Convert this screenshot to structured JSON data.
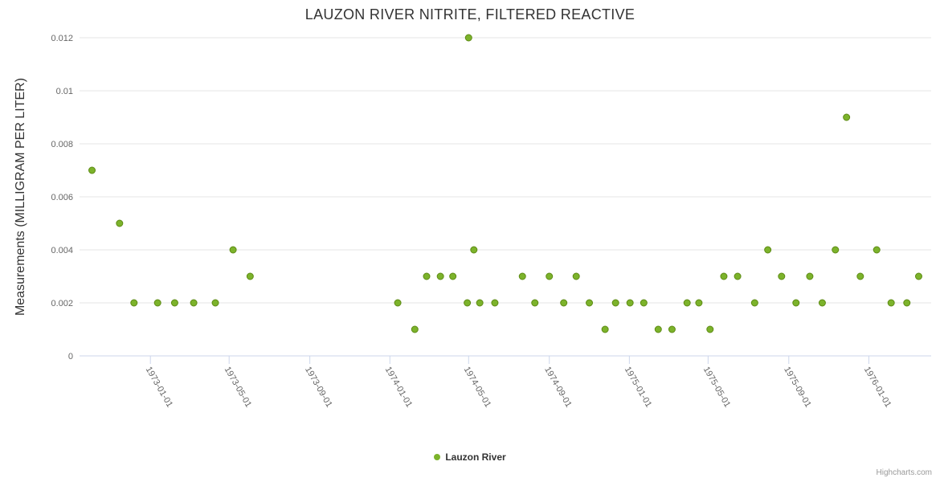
{
  "credits": "Highcharts.com",
  "chart_data": {
    "type": "scatter",
    "title": "LAUZON RIVER NITRITE, FILTERED REACTIVE",
    "xlabel": "",
    "ylabel": "Measurements (MILLIGRAM PER LITER)",
    "ylim": [
      0,
      0.012
    ],
    "grid": true,
    "legend_position": "bottom",
    "y_ticks": [
      0,
      0.002,
      0.004,
      0.006,
      0.008,
      0.01,
      0.012
    ],
    "y_tick_labels": [
      "0",
      "0.002",
      "0.004",
      "0.006",
      "0.008",
      "0.01",
      "0.012"
    ],
    "x_ticks": [
      "1973-01-01",
      "1973-05-01",
      "1973-09-01",
      "1974-01-01",
      "1974-05-01",
      "1974-09-01",
      "1975-01-01",
      "1975-05-01",
      "1975-09-01",
      "1976-01-01"
    ],
    "x_range": [
      "1972-09-15",
      "1976-04-05"
    ],
    "colors": {
      "grid_line": "#e6e6e6",
      "axis_line": "#ccd6eb",
      "tick_label": "#666666",
      "marker_fill": "#7cb32b",
      "marker_border": "#5d8a14"
    },
    "series": [
      {
        "name": "Lauzon River",
        "color": "#7cb32b",
        "border_color": "#5d8a14",
        "marker": "circle",
        "points": [
          [
            "1972-10-04",
            0.007
          ],
          [
            "1972-11-15",
            0.005
          ],
          [
            "1972-12-07",
            0.002
          ],
          [
            "1973-01-12",
            0.002
          ],
          [
            "1973-02-07",
            0.002
          ],
          [
            "1973-03-08",
            0.002
          ],
          [
            "1973-04-10",
            0.002
          ],
          [
            "1973-05-07",
            0.004
          ],
          [
            "1973-06-02",
            0.003
          ],
          [
            "1974-01-13",
            0.002
          ],
          [
            "1974-02-08",
            0.001
          ],
          [
            "1974-02-26",
            0.003
          ],
          [
            "1974-03-19",
            0.003
          ],
          [
            "1974-04-07",
            0.003
          ],
          [
            "1974-04-29",
            0.002
          ],
          [
            "1974-05-01",
            0.012
          ],
          [
            "1974-05-09",
            0.004
          ],
          [
            "1974-05-18",
            0.002
          ],
          [
            "1974-06-10",
            0.002
          ],
          [
            "1974-07-22",
            0.003
          ],
          [
            "1974-08-10",
            0.002
          ],
          [
            "1974-09-01",
            0.003
          ],
          [
            "1974-09-23",
            0.002
          ],
          [
            "1974-10-12",
            0.003
          ],
          [
            "1974-11-01",
            0.002
          ],
          [
            "1974-11-25",
            0.001
          ],
          [
            "1974-12-11",
            0.002
          ],
          [
            "1975-01-02",
            0.002
          ],
          [
            "1975-01-23",
            0.002
          ],
          [
            "1975-02-14",
            0.001
          ],
          [
            "1975-03-07",
            0.001
          ],
          [
            "1975-03-30",
            0.002
          ],
          [
            "1975-04-17",
            0.002
          ],
          [
            "1975-05-04",
            0.001
          ],
          [
            "1975-05-25",
            0.003
          ],
          [
            "1975-06-15",
            0.003
          ],
          [
            "1975-07-11",
            0.002
          ],
          [
            "1975-07-31",
            0.004
          ],
          [
            "1975-08-21",
            0.003
          ],
          [
            "1975-09-12",
            0.002
          ],
          [
            "1975-10-03",
            0.003
          ],
          [
            "1975-10-22",
            0.002
          ],
          [
            "1975-11-11",
            0.004
          ],
          [
            "1975-11-28",
            0.009
          ],
          [
            "1975-12-19",
            0.003
          ],
          [
            "1976-01-13",
            0.004
          ],
          [
            "1976-02-04",
            0.002
          ],
          [
            "1976-02-28",
            0.002
          ],
          [
            "1976-03-17",
            0.003
          ]
        ]
      }
    ]
  }
}
